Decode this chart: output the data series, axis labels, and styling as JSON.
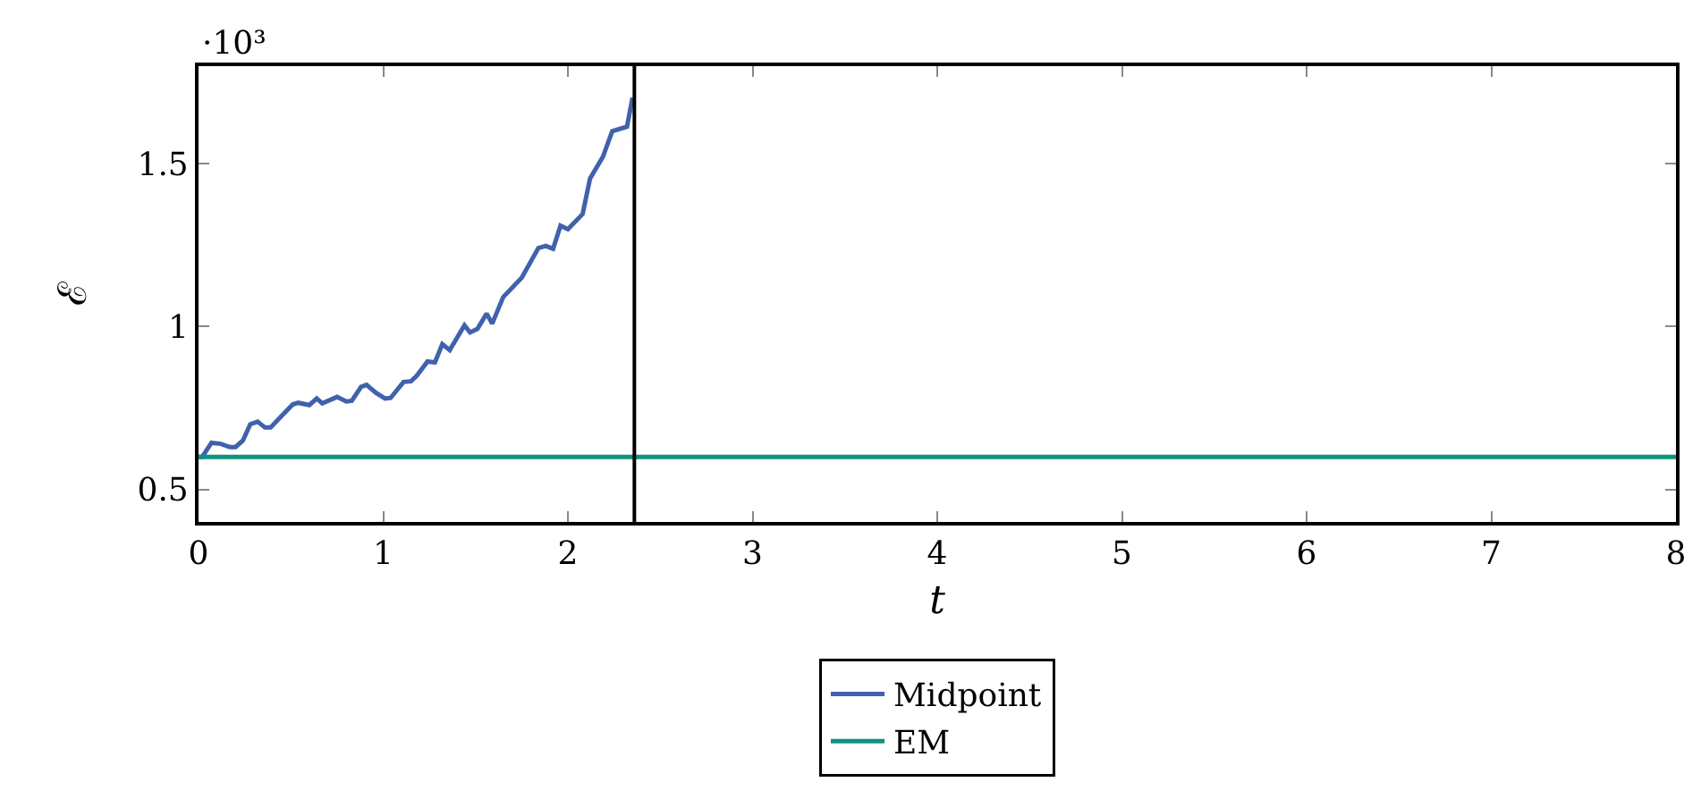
{
  "chart_data": {
    "type": "line",
    "xlabel": "t",
    "ylabel": "ℰ",
    "annotations": [
      "·10³"
    ],
    "xlim": [
      0,
      8
    ],
    "xticks": [
      0,
      1,
      2,
      3,
      4,
      5,
      6,
      7,
      8
    ],
    "ylim": [
      0.4,
      1.8
    ],
    "yticks": [
      0.5,
      1,
      1.5
    ],
    "grid": false,
    "legend": "bottom",
    "marker": "none",
    "line_style": "solid",
    "ref_lines": [
      {
        "axis": "x",
        "value": 2.36,
        "color": "#000000"
      }
    ],
    "series": [
      {
        "name": "Midpoint",
        "color": "#4062ac",
        "x": [
          0,
          0.02,
          0.07,
          0.12,
          0.17,
          0.2,
          0.24,
          0.28,
          0.32,
          0.36,
          0.39,
          0.44,
          0.51,
          0.54,
          0.6,
          0.64,
          0.67,
          0.75,
          0.8,
          0.83,
          0.88,
          0.91,
          0.96,
          1.01,
          1.04,
          1.11,
          1.15,
          1.18,
          1.24,
          1.28,
          1.32,
          1.36,
          1.44,
          1.47,
          1.51,
          1.56,
          1.59,
          1.65,
          1.75,
          1.84,
          1.88,
          1.92,
          1.96,
          2,
          2.08,
          2.12,
          2.19,
          2.24,
          2.32,
          2.35
        ],
        "values": [
          0.6,
          0.6,
          0.643,
          0.64,
          0.63,
          0.63,
          0.65,
          0.7,
          0.708,
          0.69,
          0.69,
          0.72,
          0.761,
          0.766,
          0.759,
          0.779,
          0.764,
          0.784,
          0.77,
          0.772,
          0.815,
          0.821,
          0.797,
          0.779,
          0.781,
          0.83,
          0.832,
          0.848,
          0.893,
          0.89,
          0.946,
          0.928,
          1.004,
          0.982,
          0.993,
          1.04,
          1.009,
          1.091,
          1.15,
          1.241,
          1.248,
          1.239,
          1.31,
          1.299,
          1.346,
          1.455,
          1.522,
          1.6,
          1.614,
          1.703
        ]
      },
      {
        "name": "EM",
        "color": "#10937d",
        "x": [
          0,
          8
        ],
        "values": [
          0.6,
          0.6
        ]
      }
    ]
  }
}
